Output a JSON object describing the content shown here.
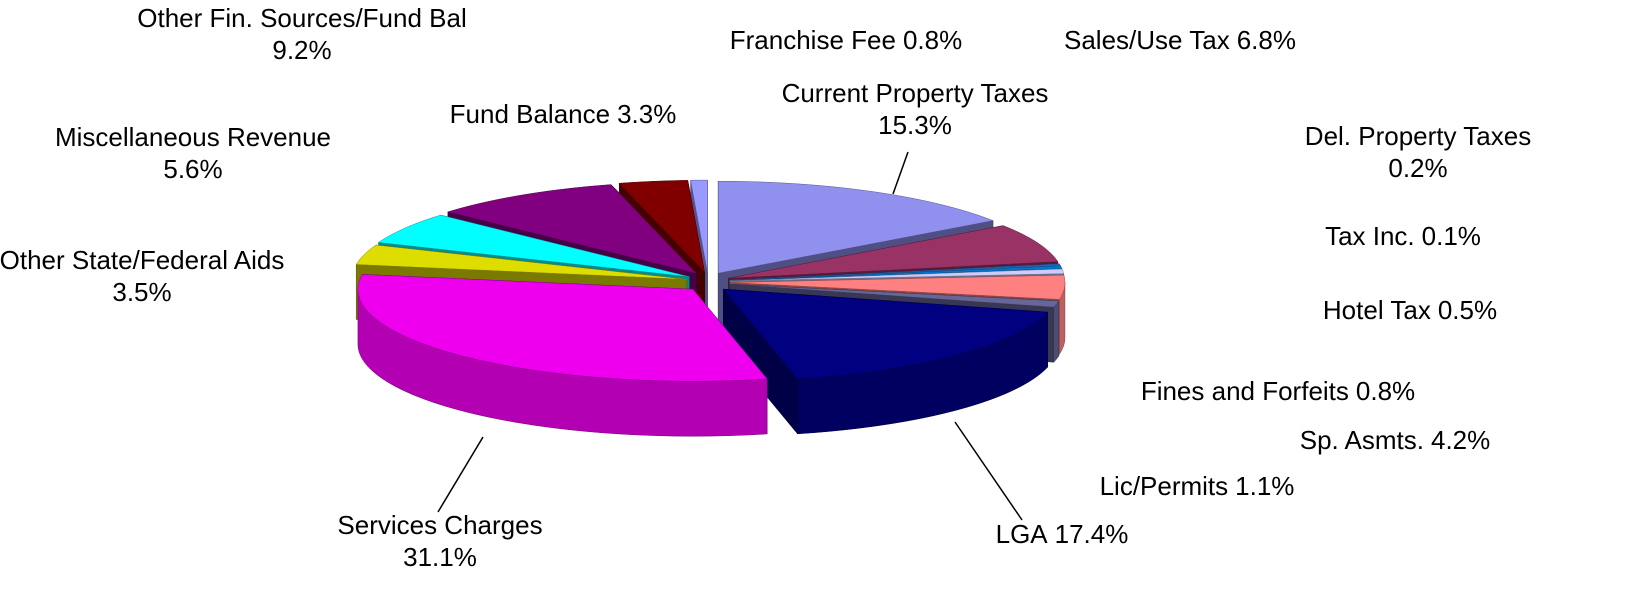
{
  "chart_data": {
    "type": "pie3d",
    "categories": [
      "Current Property Taxes",
      "Sales/Use Tax",
      "Del. Property Taxes",
      "Tax Inc.",
      "Hotel Tax",
      "Fines and Forfeits",
      "Sp. Asmts.",
      "Lic/Permits",
      "LGA",
      "Services Charges",
      "Other State/Federal Aids",
      "Miscellaneous Revenue",
      "Other Fin. Sources/Fund Bal",
      "Fund Balance",
      "Franchise Fee"
    ],
    "values": [
      15.3,
      6.8,
      0.2,
      0.1,
      0.5,
      0.8,
      4.2,
      1.1,
      17.4,
      31.1,
      3.5,
      5.6,
      9.2,
      3.3,
      0.8
    ],
    "value_labels": [
      "15.3%",
      "6.8%",
      "0.2%",
      "0.1%",
      "0.5%",
      "0.8%",
      "4.2%",
      "1.1%",
      "17.4%",
      "31.1%",
      "3.5%",
      "5.6%",
      "9.2%",
      "3.3%",
      "0.8%"
    ],
    "colors": [
      "#9090ee",
      "#993366",
      "#3366cc",
      "#6699ff",
      "#0077cc",
      "#ccccff",
      "#ff8080",
      "#666699",
      "#000080",
      "#ee00ee",
      "#dddd00",
      "#00ffff",
      "#800080",
      "#800000",
      "#9999ff"
    ]
  }
}
